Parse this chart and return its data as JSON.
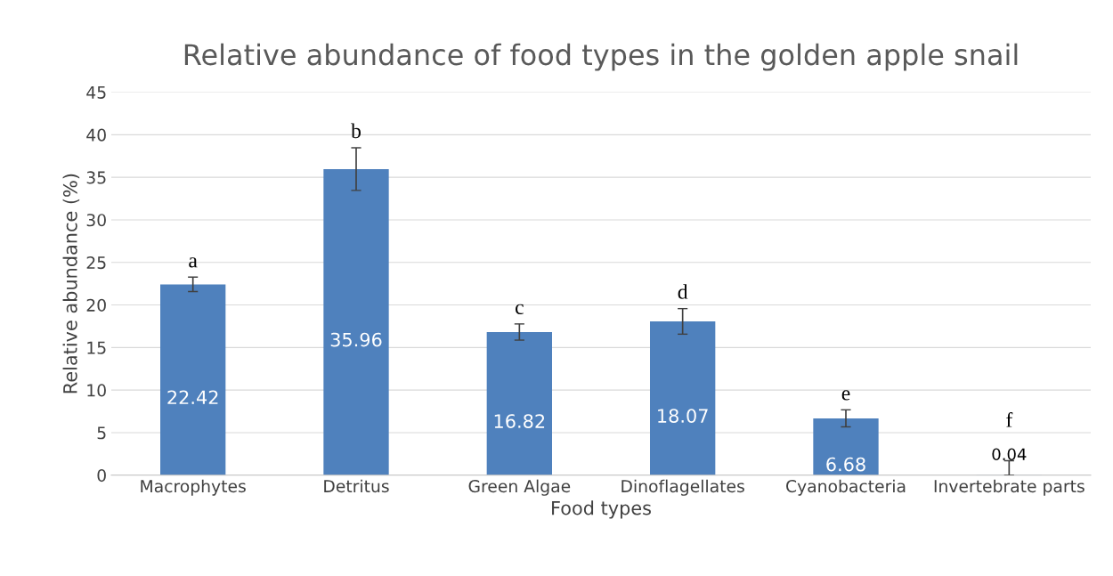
{
  "chart_data": {
    "type": "bar",
    "title": "Relative abundance of food types in the golden apple snail",
    "xlabel": "Food types",
    "ylabel": "Relative abundance (%)",
    "categories": [
      "Macrophytes",
      "Detritus",
      "Green Algae",
      "Dinoflagellates",
      "Cyanobacteria",
      "Invertebrate parts"
    ],
    "values": [
      22.42,
      35.96,
      16.82,
      18.07,
      6.68,
      0.04
    ],
    "color": "#4f81bd",
    "errors": [
      0.85,
      2.5,
      0.95,
      1.5,
      1.0,
      [
        0,
        1.7
      ]
    ],
    "data_labels": true,
    "annotations": [
      {
        "text": "a",
        "x": "Macrophytes",
        "y": 23.3
      },
      {
        "text": "b",
        "x": "Detritus",
        "y": 38.5
      },
      {
        "text": "c",
        "x": "Green Algae",
        "y": 17.8
      },
      {
        "text": "d",
        "x": "Dinoflagellates",
        "y": 19.6
      },
      {
        "text": "e",
        "x": "Cyanobacteria",
        "y": 7.7
      },
      {
        "text": "f",
        "x": "Invertebrate parts",
        "y": 1.7
      }
    ],
    "ylim": [
      0,
      45
    ],
    "yticks": [
      0,
      5,
      10,
      15,
      20,
      25,
      30,
      35,
      40,
      45
    ],
    "grid": "y"
  }
}
